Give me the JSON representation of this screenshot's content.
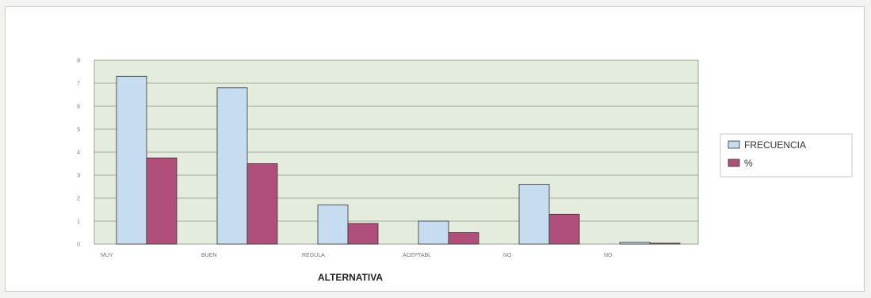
{
  "chart_data": {
    "type": "bar",
    "categories": [
      "MUY",
      "BUEN",
      "REGULA",
      "ACEPTABL",
      "NO",
      "NO"
    ],
    "series": [
      {
        "name": "FRECUENCIA",
        "values": [
          7.3,
          6.8,
          1.7,
          1.0,
          2.6,
          0.08
        ],
        "color": "#c6dcef"
      },
      {
        "name": "%",
        "values": [
          3.75,
          3.5,
          0.9,
          0.5,
          1.3,
          0.04
        ],
        "color": "#b0507a"
      }
    ],
    "title": "",
    "xlabel": "ALTERNATIVA",
    "ylabel": "",
    "ylim": [
      0,
      8
    ],
    "yticks": [
      0,
      1,
      2,
      3,
      4,
      5,
      6,
      7,
      8
    ],
    "grid": true,
    "plot_background": "#e3ecdd",
    "legend_position": "right"
  }
}
